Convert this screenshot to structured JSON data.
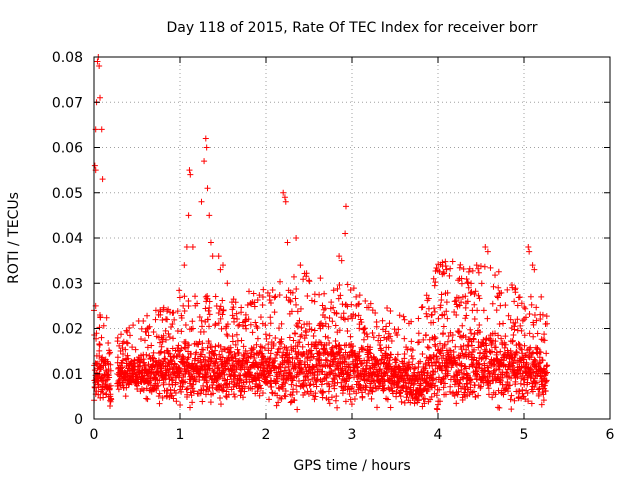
{
  "chart_data": {
    "type": "scatter",
    "title": "Day 118 of 2015, Rate Of TEC Index for receiver borr",
    "xlabel": "GPS time / hours",
    "ylabel": "ROTI / TECUs",
    "xlim": [
      0,
      6
    ],
    "ylim": [
      0,
      0.08
    ],
    "x_ticks": [
      0,
      1,
      2,
      3,
      4,
      5,
      6
    ],
    "x_tick_labels": [
      "0",
      "1",
      "2",
      "3",
      "4",
      "5",
      "6"
    ],
    "y_ticks": [
      0,
      0.01,
      0.02,
      0.03,
      0.04,
      0.05,
      0.06,
      0.07,
      0.08
    ],
    "y_tick_labels": [
      "0",
      "0.01",
      "0.02",
      "0.03",
      "0.04",
      "0.05",
      "0.06",
      "0.07",
      "0.08"
    ],
    "grid": true,
    "marker": "+",
    "series_color": "#ff0000",
    "notable_points": [
      {
        "x": 0.02,
        "y": 0.064
      },
      {
        "x": 0.03,
        "y": 0.07
      },
      {
        "x": 0.04,
        "y": 0.079
      },
      {
        "x": 0.05,
        "y": 0.08
      },
      {
        "x": 0.06,
        "y": 0.078
      },
      {
        "x": 0.07,
        "y": 0.071
      },
      {
        "x": 0.09,
        "y": 0.064
      },
      {
        "x": 0.1,
        "y": 0.053
      },
      {
        "x": 0.01,
        "y": 0.056
      },
      {
        "x": 0.02,
        "y": 0.055
      },
      {
        "x": 0.0,
        "y": 0.024
      },
      {
        "x": 0.02,
        "y": 0.025
      },
      {
        "x": 1.1,
        "y": 0.045
      },
      {
        "x": 1.11,
        "y": 0.055
      },
      {
        "x": 1.12,
        "y": 0.054
      },
      {
        "x": 1.08,
        "y": 0.038
      },
      {
        "x": 1.05,
        "y": 0.034
      },
      {
        "x": 1.15,
        "y": 0.038
      },
      {
        "x": 1.25,
        "y": 0.048
      },
      {
        "x": 1.28,
        "y": 0.057
      },
      {
        "x": 1.3,
        "y": 0.062
      },
      {
        "x": 1.31,
        "y": 0.06
      },
      {
        "x": 1.32,
        "y": 0.051
      },
      {
        "x": 1.34,
        "y": 0.045
      },
      {
        "x": 1.36,
        "y": 0.039
      },
      {
        "x": 1.38,
        "y": 0.036
      },
      {
        "x": 1.45,
        "y": 0.036
      },
      {
        "x": 1.5,
        "y": 0.034
      },
      {
        "x": 1.47,
        "y": 0.033
      },
      {
        "x": 1.55,
        "y": 0.03
      },
      {
        "x": 0.72,
        "y": 0.024
      },
      {
        "x": 0.75,
        "y": 0.023
      },
      {
        "x": 0.77,
        "y": 0.023
      },
      {
        "x": 2.2,
        "y": 0.05
      },
      {
        "x": 2.22,
        "y": 0.049
      },
      {
        "x": 2.23,
        "y": 0.048
      },
      {
        "x": 2.25,
        "y": 0.039
      },
      {
        "x": 2.35,
        "y": 0.04
      },
      {
        "x": 2.4,
        "y": 0.034
      },
      {
        "x": 2.85,
        "y": 0.036
      },
      {
        "x": 2.88,
        "y": 0.035
      },
      {
        "x": 2.92,
        "y": 0.041
      },
      {
        "x": 2.93,
        "y": 0.047
      },
      {
        "x": 3.1,
        "y": 0.022
      },
      {
        "x": 3.05,
        "y": 0.025
      },
      {
        "x": 3.95,
        "y": 0.031
      },
      {
        "x": 4.05,
        "y": 0.032
      },
      {
        "x": 4.1,
        "y": 0.033
      },
      {
        "x": 4.25,
        "y": 0.031
      },
      {
        "x": 4.35,
        "y": 0.03
      },
      {
        "x": 4.45,
        "y": 0.034
      },
      {
        "x": 4.55,
        "y": 0.038
      },
      {
        "x": 4.58,
        "y": 0.037
      },
      {
        "x": 4.7,
        "y": 0.029
      },
      {
        "x": 4.9,
        "y": 0.028
      },
      {
        "x": 5.05,
        "y": 0.038
      },
      {
        "x": 5.06,
        "y": 0.037
      },
      {
        "x": 5.1,
        "y": 0.034
      },
      {
        "x": 5.12,
        "y": 0.033
      },
      {
        "x": 5.2,
        "y": 0.027
      },
      {
        "x": 5.22,
        "y": 0.023
      },
      {
        "x": 5.25,
        "y": 0.021
      },
      {
        "x": 0.85,
        "y": 0.022
      }
    ],
    "activity_envelopes": [
      {
        "x": 0.0,
        "base": 0.0095,
        "amp": 0.006
      },
      {
        "x": 0.15,
        "base": 0.01,
        "amp": 0.006
      },
      {
        "x": 0.25,
        "base": 0.0,
        "amp": 0.0
      },
      {
        "x": 0.27,
        "base": 0.01,
        "amp": 0.004
      },
      {
        "x": 0.7,
        "base": 0.01,
        "amp": 0.006
      },
      {
        "x": 1.0,
        "base": 0.011,
        "amp": 0.008
      },
      {
        "x": 1.5,
        "base": 0.011,
        "amp": 0.007
      },
      {
        "x": 2.0,
        "base": 0.011,
        "amp": 0.008
      },
      {
        "x": 2.5,
        "base": 0.012,
        "amp": 0.009
      },
      {
        "x": 3.0,
        "base": 0.011,
        "amp": 0.008
      },
      {
        "x": 3.5,
        "base": 0.01,
        "amp": 0.006
      },
      {
        "x": 3.75,
        "base": 0.008,
        "amp": 0.006
      },
      {
        "x": 4.0,
        "base": 0.012,
        "amp": 0.01
      },
      {
        "x": 4.5,
        "base": 0.012,
        "amp": 0.01
      },
      {
        "x": 5.0,
        "base": 0.011,
        "amp": 0.008
      },
      {
        "x": 5.27,
        "base": 0.01,
        "amp": 0.006
      }
    ],
    "data_extent_hours": [
      0,
      5.27
    ]
  }
}
